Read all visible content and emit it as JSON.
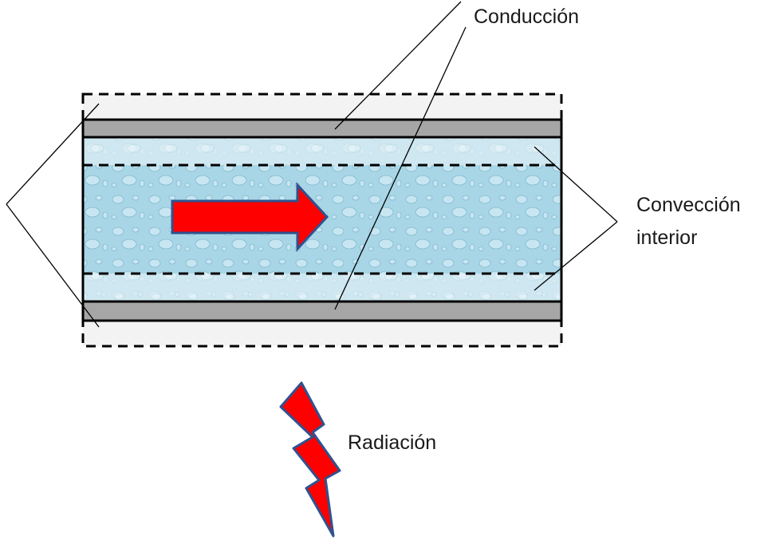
{
  "labels": {
    "conduction": "Conducción",
    "convection_line1": "Convección",
    "convection_line2": "interior",
    "radiation": "Radiación"
  },
  "colors": {
    "outer_layer": "#f3f3f3",
    "pipe_wall": "#a6a6a6",
    "boundary_layer": "#dcedf3",
    "water": "#a9d6e6",
    "droplet": "#c7e6f1",
    "arrow_fill": "#ff0000",
    "arrow_stroke": "#2f528f",
    "outline": "#000000"
  }
}
